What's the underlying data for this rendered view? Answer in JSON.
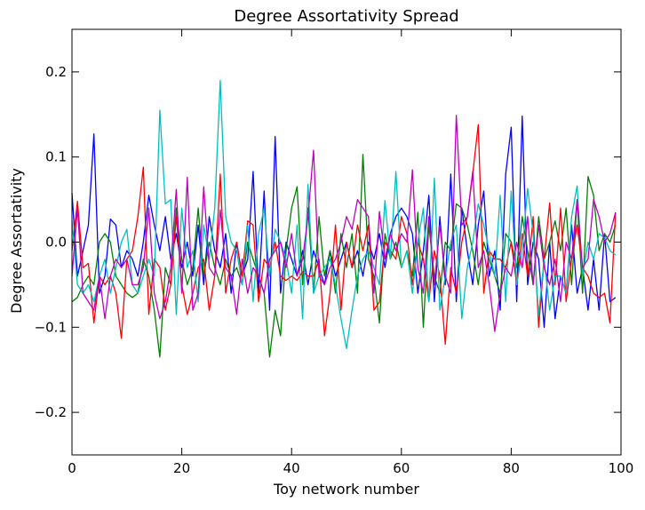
{
  "chart_data": {
    "type": "line",
    "title": "Degree Assortativity Spread",
    "xlabel": "Toy network number",
    "ylabel": "Degree Assortativity",
    "xlim": [
      0,
      100
    ],
    "ylim": [
      -0.25,
      0.25
    ],
    "x_ticks": [
      0,
      20,
      40,
      60,
      80,
      100
    ],
    "x_tick_labels": [
      "0",
      "20",
      "40",
      "60",
      "80",
      "100"
    ],
    "y_ticks": [
      -0.2,
      -0.1,
      0.0,
      0.1,
      0.2
    ],
    "y_tick_labels": [
      "−0.2",
      "−0.1",
      "0.0",
      "0.1",
      "0.2"
    ],
    "grid": false,
    "legend": "none",
    "series": [
      {
        "color": "#0000ff",
        "values": [
          0.058,
          -0.04,
          -0.01,
          0.02,
          0.127,
          -0.06,
          -0.04,
          0.027,
          0.02,
          -0.03,
          -0.01,
          -0.02,
          -0.04,
          0.0,
          0.055,
          0.02,
          -0.01,
          0.03,
          -0.02,
          0.01,
          -0.03,
          0.0,
          -0.04,
          0.02,
          -0.05,
          0.03,
          -0.01,
          -0.03,
          0.01,
          -0.06,
          0.0,
          -0.04,
          -0.02,
          0.083,
          -0.06,
          0.06,
          -0.08,
          0.124,
          -0.06,
          0.0,
          -0.02,
          -0.04,
          -0.01,
          -0.05,
          -0.01,
          -0.03,
          -0.05,
          -0.01,
          -0.04,
          -0.02,
          0.0,
          -0.03,
          -0.01,
          -0.04,
          0.0,
          -0.02,
          0.01,
          -0.03,
          0.01,
          0.03,
          0.04,
          0.03,
          0.01,
          -0.06,
          -0.01,
          0.055,
          -0.07,
          0.03,
          -0.05,
          0.08,
          -0.07,
          0.04,
          -0.01,
          -0.05,
          0.02,
          0.06,
          -0.04,
          -0.01,
          -0.08,
          0.08,
          0.135,
          -0.07,
          0.148,
          -0.05,
          0.0,
          -0.02,
          -0.1,
          0.0,
          -0.09,
          -0.04,
          -0.06,
          0.02,
          -0.06,
          -0.03,
          -0.08,
          -0.02,
          -0.08,
          0.01,
          -0.07,
          -0.065
        ]
      },
      {
        "color": "#008000",
        "values": [
          -0.07,
          -0.065,
          -0.05,
          -0.04,
          -0.05,
          0.0,
          0.01,
          0.0,
          -0.04,
          -0.05,
          -0.06,
          -0.065,
          -0.06,
          -0.02,
          -0.04,
          -0.08,
          -0.135,
          -0.03,
          -0.05,
          0.04,
          -0.02,
          -0.05,
          -0.03,
          0.04,
          -0.04,
          0.0,
          -0.03,
          -0.05,
          -0.02,
          -0.04,
          -0.03,
          -0.05,
          0.0,
          -0.02,
          -0.04,
          -0.06,
          -0.135,
          -0.08,
          -0.11,
          -0.01,
          0.04,
          0.065,
          -0.05,
          0.04,
          -0.06,
          0.03,
          -0.04,
          -0.01,
          -0.06,
          0.01,
          -0.03,
          0.01,
          -0.06,
          0.103,
          -0.02,
          -0.04,
          -0.095,
          0.01,
          -0.02,
          0.0,
          -0.03,
          -0.01,
          -0.04,
          0.035,
          -0.1,
          0.02,
          -0.04,
          -0.06,
          0.0,
          -0.01,
          0.045,
          0.04,
          0.02,
          -0.01,
          -0.05,
          0.0,
          -0.02,
          -0.04,
          -0.06,
          0.01,
          0.0,
          -0.03,
          0.03,
          -0.01,
          -0.05,
          0.03,
          -0.02,
          0.0,
          0.025,
          -0.01,
          0.04,
          -0.05,
          0.05,
          -0.06,
          0.077,
          0.055,
          -0.01,
          0.01,
          0.0,
          0.02
        ]
      },
      {
        "color": "#ff0000",
        "values": [
          -0.01,
          0.048,
          -0.03,
          -0.025,
          -0.095,
          -0.04,
          -0.05,
          -0.04,
          -0.06,
          -0.113,
          -0.02,
          -0.01,
          0.03,
          0.088,
          -0.085,
          -0.02,
          -0.03,
          -0.08,
          -0.05,
          0.03,
          -0.05,
          -0.085,
          -0.06,
          -0.03,
          -0.02,
          -0.08,
          -0.04,
          0.08,
          -0.06,
          -0.02,
          0.0,
          -0.04,
          0.025,
          0.02,
          -0.07,
          -0.02,
          -0.03,
          0.0,
          -0.04,
          -0.045,
          -0.04,
          -0.045,
          -0.035,
          -0.04,
          -0.04,
          -0.02,
          -0.11,
          -0.06,
          0.02,
          -0.08,
          0.0,
          -0.03,
          0.02,
          -0.01,
          0.02,
          -0.08,
          -0.07,
          0.0,
          -0.01,
          -0.02,
          0.03,
          0.01,
          -0.05,
          0.0,
          -0.02,
          -0.07,
          -0.01,
          -0.04,
          -0.12,
          -0.03,
          -0.06,
          0.0,
          0.03,
          0.08,
          0.138,
          -0.06,
          -0.01,
          -0.02,
          -0.02,
          -0.03,
          0.0,
          -0.05,
          0.01,
          -0.04,
          0.03,
          -0.1,
          -0.02,
          0.046,
          -0.05,
          0.04,
          -0.07,
          -0.02,
          0.02,
          -0.03,
          -0.04,
          -0.06,
          -0.065,
          -0.06,
          -0.095,
          0.035
        ]
      },
      {
        "color": "#00bfbf",
        "values": [
          0.025,
          -0.05,
          -0.06,
          -0.05,
          -0.07,
          -0.04,
          -0.02,
          -0.06,
          -0.03,
          0.0,
          0.015,
          -0.05,
          -0.06,
          -0.04,
          -0.02,
          -0.04,
          0.155,
          0.045,
          0.05,
          -0.085,
          0.04,
          -0.03,
          -0.01,
          -0.07,
          0.02,
          -0.02,
          0.04,
          0.19,
          0.03,
          0.0,
          -0.01,
          -0.05,
          0.02,
          -0.07,
          0.01,
          0.04,
          -0.04,
          0.015,
          0.0,
          -0.02,
          -0.06,
          0.02,
          -0.09,
          0.068,
          -0.06,
          -0.04,
          -0.03,
          -0.02,
          -0.05,
          -0.09,
          -0.125,
          -0.08,
          -0.04,
          -0.02,
          -0.01,
          -0.03,
          -0.05,
          0.049,
          -0.02,
          0.083,
          -0.03,
          -0.01,
          -0.06,
          0.0,
          0.04,
          -0.07,
          0.075,
          -0.08,
          -0.04,
          0.0,
          0.02,
          -0.09,
          -0.03,
          0.0,
          0.045,
          0.02,
          -0.01,
          -0.04,
          0.055,
          -0.07,
          0.06,
          -0.05,
          -0.01,
          0.063,
          0.01,
          -0.085,
          -0.02,
          -0.08,
          -0.04,
          -0.04,
          -0.06,
          0.03,
          0.066,
          -0.04,
          0.0,
          -0.02,
          0.01,
          0.005,
          -0.01,
          -0.015
        ]
      },
      {
        "color": "#bf00bf",
        "values": [
          -0.04,
          0.04,
          -0.06,
          -0.07,
          -0.08,
          -0.04,
          -0.09,
          -0.04,
          -0.02,
          -0.03,
          -0.02,
          -0.05,
          -0.05,
          -0.03,
          0.04,
          -0.06,
          -0.09,
          -0.07,
          -0.03,
          0.062,
          -0.06,
          0.076,
          -0.08,
          -0.06,
          0.065,
          -0.03,
          -0.04,
          0.038,
          -0.03,
          -0.04,
          -0.085,
          -0.02,
          -0.06,
          -0.03,
          -0.04,
          -0.06,
          -0.02,
          -0.01,
          0.0,
          -0.03,
          0.01,
          -0.04,
          -0.02,
          0.03,
          0.108,
          -0.04,
          -0.05,
          -0.03,
          -0.02,
          0.0,
          0.03,
          0.015,
          0.05,
          0.04,
          0.03,
          -0.06,
          0.036,
          -0.02,
          0.01,
          -0.01,
          0.01,
          0.0,
          0.085,
          -0.03,
          -0.06,
          0.03,
          -0.05,
          0.02,
          -0.04,
          -0.06,
          0.149,
          0.02,
          0.03,
          0.083,
          -0.03,
          -0.01,
          -0.05,
          -0.105,
          -0.06,
          -0.03,
          -0.04,
          0.0,
          -0.03,
          0.03,
          -0.05,
          0.02,
          -0.03,
          -0.05,
          -0.02,
          -0.07,
          0.0,
          -0.02,
          0.05,
          -0.03,
          -0.02,
          0.05,
          0.03,
          0.0,
          0.01,
          0.035
        ]
      }
    ]
  }
}
